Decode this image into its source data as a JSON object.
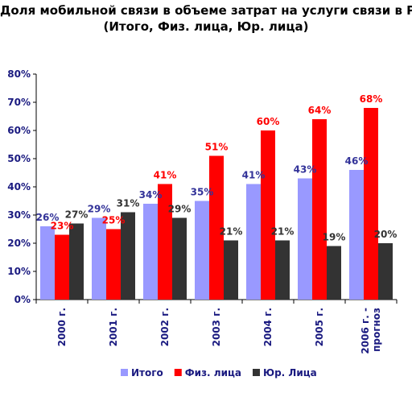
{
  "chart_data": {
    "type": "bar",
    "title_lines": [
      "Доля мобильной связи в объеме затрат на услуги связи в РФ",
      "(Итого, Физ. лица, Юр. лица)"
    ],
    "categories": [
      [
        "2000 г."
      ],
      [
        "2001 г."
      ],
      [
        "2002 г."
      ],
      [
        "2003 г."
      ],
      [
        "2004 г."
      ],
      [
        "2005 г."
      ],
      [
        "2006 г. -",
        "прогноз"
      ]
    ],
    "series": [
      {
        "name": "Итого",
        "color": "#9999ff",
        "label_color": "#333399",
        "values": [
          26,
          29,
          34,
          35,
          41,
          43,
          46
        ]
      },
      {
        "name": "Физ. лица",
        "color": "#ff0000",
        "label_color": "#ff0000",
        "values": [
          23,
          25,
          41,
          51,
          60,
          64,
          68
        ]
      },
      {
        "name": "Юр. Лица",
        "color": "#333333",
        "label_color": "#333333",
        "values": [
          27,
          31,
          29,
          21,
          21,
          19,
          20
        ]
      }
    ],
    "value_suffix": "%",
    "ylim": [
      0,
      80
    ],
    "ytick_step": 10,
    "grid": false,
    "legend_position": "bottom"
  }
}
